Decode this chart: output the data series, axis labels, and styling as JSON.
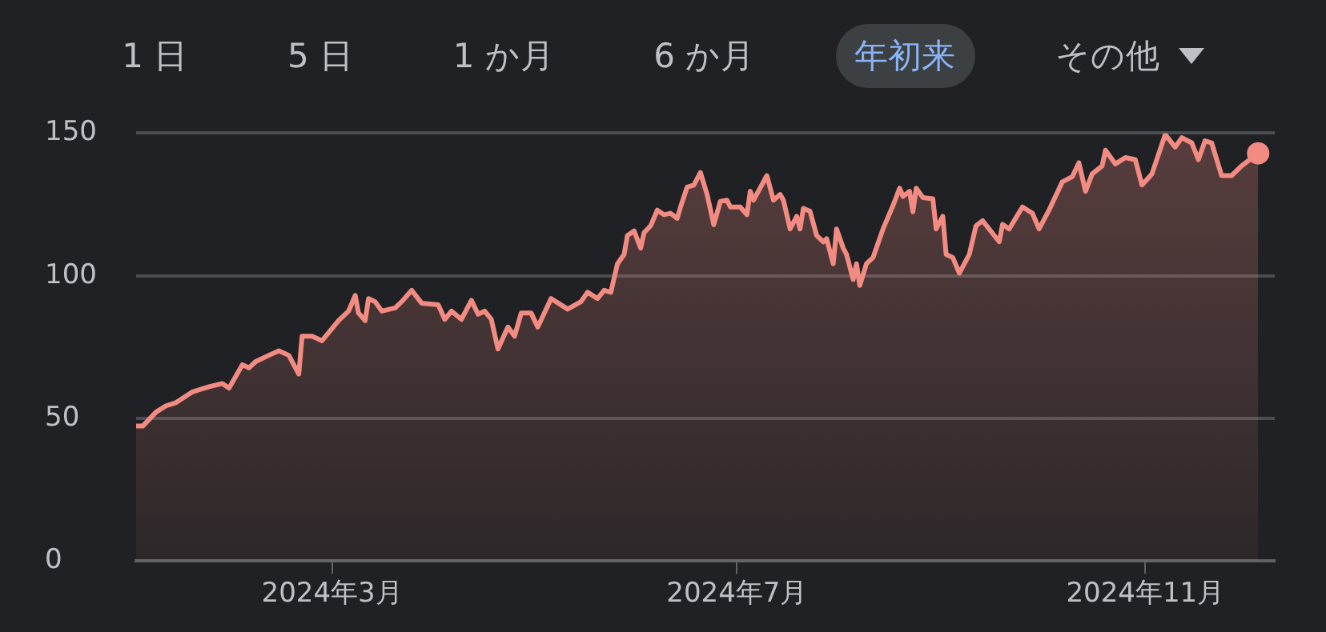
{
  "chart_data": {
    "type": "area",
    "annotations": [
      "1 日",
      "5 日",
      "1 か月",
      "6 か月",
      "年初来",
      "その他"
    ],
    "x": [
      "2024-01-02",
      "2024-01-04",
      "2024-01-08",
      "2024-01-11",
      "2024-01-14",
      "2024-01-19",
      "2024-01-24",
      "2024-01-28",
      "2024-01-30",
      "2024-02-03",
      "2024-02-05",
      "2024-02-07",
      "2024-02-11",
      "2024-02-14",
      "2024-02-17",
      "2024-02-20",
      "2024-02-21",
      "2024-02-24",
      "2024-02-27",
      "2024-03-03",
      "2024-03-06",
      "2024-03-08",
      "2024-03-09",
      "2024-03-11",
      "2024-03-12",
      "2024-03-14",
      "2024-03-16",
      "2024-03-20",
      "2024-03-22",
      "2024-03-25",
      "2024-03-28",
      "2024-04-02",
      "2024-04-04",
      "2024-04-06",
      "2024-04-09",
      "2024-04-12",
      "2024-04-14",
      "2024-04-16",
      "2024-04-18",
      "2024-04-20",
      "2024-04-23",
      "2024-04-25",
      "2024-04-27",
      "2024-04-30",
      "2024-05-02",
      "2024-05-06",
      "2024-05-11",
      "2024-05-15",
      "2024-05-17",
      "2024-05-20",
      "2024-05-22",
      "2024-05-24",
      "2024-05-26",
      "2024-05-28",
      "2024-05-29",
      "2024-05-31",
      "2024-06-02",
      "2024-06-03",
      "2024-06-05",
      "2024-06-07",
      "2024-06-09",
      "2024-06-11",
      "2024-06-13",
      "2024-06-14",
      "2024-06-16",
      "2024-06-18",
      "2024-06-20",
      "2024-06-22",
      "2024-06-24",
      "2024-06-26",
      "2024-06-28",
      "2024-06-29",
      "2024-07-02",
      "2024-07-04",
      "2024-07-05",
      "2024-07-06",
      "2024-07-10",
      "2024-07-12",
      "2024-07-14",
      "2024-07-15",
      "2024-07-17",
      "2024-07-19",
      "2024-07-20",
      "2024-07-21",
      "2024-07-23",
      "2024-07-25",
      "2024-07-27",
      "2024-07-28",
      "2024-07-30",
      "2024-07-31",
      "2024-08-02",
      "2024-08-03",
      "2024-08-05",
      "2024-08-06",
      "2024-08-07",
      "2024-08-09",
      "2024-08-11",
      "2024-08-14",
      "2024-08-17",
      "2024-08-19",
      "2024-08-20",
      "2024-08-22",
      "2024-08-23",
      "2024-08-24",
      "2024-08-26",
      "2024-08-29",
      "2024-08-30",
      "2024-09-01",
      "2024-09-02",
      "2024-09-04",
      "2024-09-06",
      "2024-09-09",
      "2024-09-11",
      "2024-09-13",
      "2024-09-18",
      "2024-09-19",
      "2024-09-21",
      "2024-09-25",
      "2024-09-28",
      "2024-09-30",
      "2024-10-03",
      "2024-10-07",
      "2024-10-10",
      "2024-10-12",
      "2024-10-14",
      "2024-10-16",
      "2024-10-19",
      "2024-10-20",
      "2024-10-23",
      "2024-10-26",
      "2024-10-29",
      "2024-10-31",
      "2024-11-03",
      "2024-11-07",
      "2024-11-10",
      "2024-11-12",
      "2024-11-15",
      "2024-11-17",
      "2024-11-19",
      "2024-11-21",
      "2024-11-24",
      "2024-11-27",
      "2024-11-30",
      "2024-12-05"
    ],
    "series": [
      {
        "color": "#f28b82",
        "values": [
          47.3,
          47.3,
          52.2,
          54.4,
          55.5,
          59.3,
          61.1,
          62.2,
          60.6,
          68.8,
          67.7,
          69.9,
          72.1,
          73.7,
          72.1,
          65.5,
          78.8,
          78.8,
          77.2,
          84.3,
          87.6,
          93.1,
          86.9,
          84.3,
          92.0,
          90.9,
          87.6,
          88.7,
          90.9,
          94.9,
          90.4,
          89.8,
          84.7,
          87.6,
          84.7,
          91.4,
          86.5,
          87.6,
          84.7,
          74.3,
          82.0,
          78.8,
          86.9,
          86.9,
          82.0,
          92.0,
          88.3,
          90.9,
          94.2,
          92.0,
          94.9,
          94.2,
          104.2,
          107.5,
          114.1,
          115.7,
          109.7,
          115.1,
          117.5,
          123.0,
          121.4,
          121.9,
          120.1,
          124.1,
          131.1,
          131.8,
          136.2,
          128.5,
          117.9,
          126.1,
          126.5,
          124.1,
          124.1,
          121.4,
          129.6,
          126.5,
          135.1,
          126.5,
          128.5,
          126.5,
          116.4,
          120.8,
          116.4,
          123.6,
          122.6,
          114.1,
          111.9,
          113.0,
          104.2,
          116.4,
          109.7,
          107.5,
          98.7,
          104.2,
          96.6,
          104.2,
          106.4,
          116.4,
          124.6,
          130.7,
          127.8,
          129.6,
          122.4,
          130.7,
          127.4,
          127.0,
          116.4,
          120.8,
          107.5,
          106.4,
          100.9,
          107.5,
          117.5,
          119.3,
          111.9,
          118.0,
          116.4,
          124.1,
          121.9,
          116.4,
          123.0,
          132.9,
          134.7,
          139.6,
          129.6,
          135.7,
          138.5,
          144.0,
          139.2,
          141.4,
          140.7,
          131.8,
          135.7,
          149.5,
          145.1,
          148.4,
          146.6,
          140.7,
          147.3,
          146.6,
          135.1,
          135.1,
          138.5,
          142.9
        ]
      }
    ],
    "xlim": [
      "2024-01-02",
      "2024-12-10"
    ],
    "xticks": [
      {
        "value": "2024-03-01",
        "label": "2024年3月"
      },
      {
        "value": "2024-07-01",
        "label": "2024年7月"
      },
      {
        "value": "2024-11-01",
        "label": "2024年11月"
      }
    ],
    "ylim": [
      0,
      150
    ],
    "yticks": [
      0,
      50,
      100,
      150
    ],
    "grid": "y"
  }
}
